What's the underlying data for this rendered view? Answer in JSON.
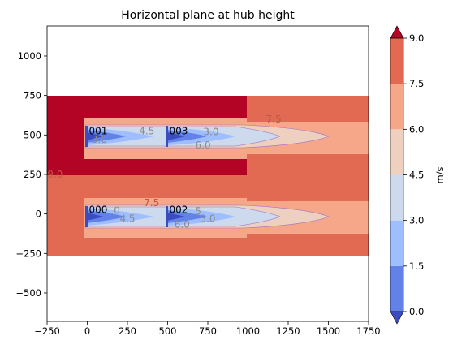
{
  "chart_data": {
    "type": "contour",
    "title": "Horizontal plane at hub height",
    "xlabel": "",
    "ylabel": "",
    "xlim": [
      -250,
      1750
    ],
    "ylim": [
      -680,
      1190
    ],
    "xticks": [
      "−250",
      "0",
      "250",
      "500",
      "750",
      "1000",
      "1250",
      "1500",
      "1750"
    ],
    "xtick_values": [
      -250,
      0,
      250,
      500,
      750,
      1000,
      1250,
      1500,
      1750
    ],
    "yticks": [
      "−500",
      "−250",
      "0",
      "250",
      "500",
      "750",
      "1000"
    ],
    "ytick_values": [
      -500,
      -250,
      0,
      250,
      500,
      750,
      1000
    ],
    "grid": false,
    "colorbar": {
      "label": "m/s",
      "levels": [
        0.0,
        1.5,
        3.0,
        4.5,
        6.0,
        7.5,
        9.0
      ],
      "tick_labels": [
        "0.0",
        "1.5",
        "3.0",
        "4.5",
        "6.0",
        "7.5",
        "9.0"
      ],
      "colors": [
        "#6282ea",
        "#9ebeff",
        "#cdd9ec",
        "#eed0c0",
        "#f7a789",
        "#e26952"
      ],
      "over_color": "#b40426",
      "under_color": "#3b4cc0",
      "extend": "both"
    },
    "domain_regions": [
      {
        "x": [
          -250,
          1750
        ],
        "y": [
          -250,
          750
        ],
        "level": "7.5-9.0"
      },
      {
        "x": [
          -250,
          1000
        ],
        "y": [
          250,
          750
        ],
        "level": ">9.0"
      },
      {
        "x": [
          1000,
          1750
        ],
        "y": [
          -250,
          750
        ],
        "level": "6.0-7.5 near wakes"
      }
    ],
    "turbines": [
      {
        "label": "000",
        "x": 0,
        "y": 0
      },
      {
        "label": "001",
        "x": 0,
        "y": 500
      },
      {
        "label": "002",
        "x": 500,
        "y": 0
      },
      {
        "label": "003",
        "x": 500,
        "y": 500
      }
    ],
    "contour_labels": [
      {
        "text": "7.5",
        "x": 1160,
        "y": 600,
        "color": "#c0573f"
      },
      {
        "text": "4.5",
        "x": 370,
        "y": 525,
        "color": "#8a8a8a"
      },
      {
        "text": "3.0",
        "x": 770,
        "y": 520,
        "color": "#8a8a8a"
      },
      {
        "text": "3.0",
        "x": 75,
        "y": 470,
        "color": "#8a8a8a"
      },
      {
        "text": "6.0",
        "x": 720,
        "y": 435,
        "color": "#8a8a8a"
      },
      {
        "text": "9.0",
        "x": -200,
        "y": 250,
        "color": "#c0573f"
      },
      {
        "text": "7.5",
        "x": 400,
        "y": 70,
        "color": "#c0573f"
      },
      {
        "text": ".0",
        "x": 175,
        "y": 20,
        "color": "#8a8a8a"
      },
      {
        "text": "4.5",
        "x": 250,
        "y": -30,
        "color": "#8a8a8a"
      },
      {
        "text": "5",
        "x": 690,
        "y": 15,
        "color": "#8a8a8a"
      },
      {
        "text": "3.0",
        "x": 750,
        "y": -30,
        "color": "#8a8a8a"
      },
      {
        "text": "6.0",
        "x": 590,
        "y": -65,
        "color": "#8a8a8a"
      }
    ]
  }
}
